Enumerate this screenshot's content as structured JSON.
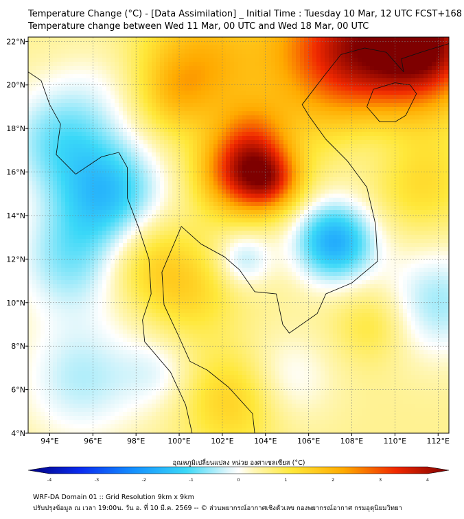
{
  "title": {
    "line1": "Temperature Change (°C) - [Data Assimilation] _ Initial Time : Tuesday 10 Mar, 12 UTC FCST+168",
    "line2": "Temperature change between Wed 11 Mar, 00 UTC and Wed 18 Mar, 00 UTC"
  },
  "axes": {
    "lon_range": [
      93,
      112.5
    ],
    "lat_range": [
      4,
      22.2
    ],
    "x_ticks": [
      {
        "value": 94,
        "label": "94°E"
      },
      {
        "value": 96,
        "label": "96°E"
      },
      {
        "value": 98,
        "label": "98°E"
      },
      {
        "value": 100,
        "label": "100°E"
      },
      {
        "value": 102,
        "label": "102°E"
      },
      {
        "value": 104,
        "label": "104°E"
      },
      {
        "value": 106,
        "label": "106°E"
      },
      {
        "value": 108,
        "label": "108°E"
      },
      {
        "value": 110,
        "label": "110°E"
      },
      {
        "value": 112,
        "label": "112°E"
      }
    ],
    "y_ticks": [
      {
        "value": 22,
        "label": "22°N"
      },
      {
        "value": 20,
        "label": "20°N"
      },
      {
        "value": 18,
        "label": "18°N"
      },
      {
        "value": 16,
        "label": "16°N"
      },
      {
        "value": 14,
        "label": "14°N"
      },
      {
        "value": 12,
        "label": "12°N"
      },
      {
        "value": 10,
        "label": "10°N"
      },
      {
        "value": 8,
        "label": "8°N"
      },
      {
        "value": 6,
        "label": "6°N"
      },
      {
        "value": 4,
        "label": "4°N"
      }
    ]
  },
  "field": {
    "base_value": 0.5,
    "blobs": [
      {
        "lon": 102.8,
        "lat": 15.9,
        "amp": 2.3,
        "r": 1.3
      },
      {
        "lon": 104.3,
        "lat": 15.6,
        "amp": 1.8,
        "r": 1.0
      },
      {
        "lon": 103.5,
        "lat": 17.6,
        "amp": 1.2,
        "r": 1.2
      },
      {
        "lon": 108.0,
        "lat": 21.6,
        "amp": 3.0,
        "r": 2.5
      },
      {
        "lon": 111.5,
        "lat": 21.8,
        "amp": 2.8,
        "r": 1.8
      },
      {
        "lon": 101.0,
        "lat": 21.0,
        "amp": 1.3,
        "r": 2.0
      },
      {
        "lon": 99.8,
        "lat": 19.5,
        "amp": 0.6,
        "r": 1.2
      },
      {
        "lon": 98.5,
        "lat": 12.0,
        "amp": 0.8,
        "r": 1.5
      },
      {
        "lon": 100.5,
        "lat": 10.5,
        "amp": 0.7,
        "r": 1.5
      },
      {
        "lon": 102.5,
        "lat": 5.5,
        "amp": 0.9,
        "r": 1.6
      },
      {
        "lon": 111.2,
        "lat": 15.5,
        "amp": 0.7,
        "r": 1.6
      },
      {
        "lon": 109.0,
        "lat": 9.0,
        "amp": 0.6,
        "r": 1.2
      },
      {
        "lon": 96.8,
        "lat": 15.0,
        "amp": -1.6,
        "r": 1.7
      },
      {
        "lon": 94.5,
        "lat": 17.5,
        "amp": -1.2,
        "r": 1.8
      },
      {
        "lon": 95.0,
        "lat": 12.0,
        "amp": -1.1,
        "r": 1.8
      },
      {
        "lon": 107.2,
        "lat": 12.8,
        "amp": -2.1,
        "r": 1.3
      },
      {
        "lon": 103.0,
        "lat": 12.0,
        "amp": -0.9,
        "r": 0.9
      },
      {
        "lon": 112.0,
        "lat": 10.0,
        "amp": -1.0,
        "r": 1.8
      },
      {
        "lon": 95.5,
        "lat": 6.5,
        "amp": -0.9,
        "r": 2.0
      },
      {
        "lon": 99.0,
        "lat": 6.8,
        "amp": -0.5,
        "r": 1.2
      },
      {
        "lon": 109.0,
        "lat": 17.5,
        "amp": -0.5,
        "r": 1.5
      },
      {
        "lon": 105.0,
        "lat": 6.5,
        "amp": -0.6,
        "r": 1.5
      },
      {
        "lon": 96.5,
        "lat": 20.0,
        "amp": -0.3,
        "r": 1.5
      }
    ]
  },
  "coastlines": [
    {
      "name": "mainland-west-coast",
      "points": [
        [
          93.0,
          20.6
        ],
        [
          93.6,
          20.2
        ],
        [
          94.0,
          19.1
        ],
        [
          94.5,
          18.2
        ],
        [
          94.3,
          16.8
        ],
        [
          95.2,
          15.9
        ],
        [
          96.4,
          16.7
        ],
        [
          97.2,
          16.9
        ],
        [
          97.6,
          16.2
        ],
        [
          97.6,
          14.8
        ],
        [
          98.1,
          13.5
        ],
        [
          98.6,
          12.0
        ],
        [
          98.7,
          10.4
        ],
        [
          98.3,
          9.2
        ],
        [
          98.4,
          8.2
        ],
        [
          99.6,
          6.8
        ],
        [
          100.3,
          5.3
        ],
        [
          100.6,
          4.0
        ]
      ]
    },
    {
      "name": "gulf-and-indochina-coast",
      "points": [
        [
          103.5,
          4.0
        ],
        [
          103.4,
          4.9
        ],
        [
          102.3,
          6.1
        ],
        [
          101.3,
          6.9
        ],
        [
          100.5,
          7.3
        ],
        [
          100.0,
          8.4
        ],
        [
          99.3,
          9.9
        ],
        [
          99.2,
          11.4
        ],
        [
          99.8,
          12.8
        ],
        [
          100.1,
          13.5
        ],
        [
          101.0,
          12.7
        ],
        [
          102.1,
          12.1
        ],
        [
          102.8,
          11.5
        ],
        [
          103.5,
          10.5
        ],
        [
          104.5,
          10.4
        ],
        [
          104.8,
          9.0
        ],
        [
          105.1,
          8.6
        ],
        [
          106.4,
          9.5
        ],
        [
          106.8,
          10.4
        ],
        [
          108.0,
          10.9
        ],
        [
          109.2,
          11.9
        ],
        [
          109.1,
          13.6
        ],
        [
          108.7,
          15.3
        ],
        [
          107.8,
          16.5
        ],
        [
          106.8,
          17.5
        ],
        [
          106.0,
          18.6
        ],
        [
          105.7,
          19.1
        ],
        [
          106.7,
          20.4
        ],
        [
          107.5,
          21.4
        ],
        [
          108.6,
          21.7
        ],
        [
          109.6,
          21.5
        ],
        [
          110.4,
          20.6
        ],
        [
          110.3,
          21.2
        ],
        [
          111.2,
          21.5
        ],
        [
          112.5,
          21.9
        ]
      ]
    },
    {
      "name": "hainan",
      "points": [
        [
          108.7,
          19.0
        ],
        [
          109.3,
          18.3
        ],
        [
          110.0,
          18.3
        ],
        [
          110.5,
          18.6
        ],
        [
          111.0,
          19.6
        ],
        [
          110.7,
          20.0
        ],
        [
          110.0,
          20.1
        ],
        [
          109.0,
          19.8
        ],
        [
          108.7,
          19.0
        ]
      ]
    }
  ],
  "colorbar": {
    "label": "อุณหภูมิเปลี่ยนแปลง หน่วย องศาเซลเซียส (°C)",
    "min": -4,
    "max": 4,
    "ticks": [
      {
        "value": -4,
        "label": "-4"
      },
      {
        "value": -3,
        "label": "-3"
      },
      {
        "value": -2,
        "label": "-2"
      },
      {
        "value": -1,
        "label": "-1"
      },
      {
        "value": 0,
        "label": "0"
      },
      {
        "value": 1,
        "label": "1"
      },
      {
        "value": 2,
        "label": "2"
      },
      {
        "value": 3,
        "label": "3"
      },
      {
        "value": 4,
        "label": "4"
      }
    ],
    "stops": [
      {
        "value": -4,
        "color": "#00007e"
      },
      {
        "value": -3,
        "color": "#0a2cf0"
      },
      {
        "value": -2,
        "color": "#1490ff"
      },
      {
        "value": -1,
        "color": "#3ad8f8"
      },
      {
        "value": -0.2,
        "color": "#dff6fb"
      },
      {
        "value": 0,
        "color": "#ffffff"
      },
      {
        "value": 0.3,
        "color": "#fff6b4"
      },
      {
        "value": 1,
        "color": "#ffe83a"
      },
      {
        "value": 2,
        "color": "#ffaa00"
      },
      {
        "value": 3,
        "color": "#f02800"
      },
      {
        "value": 4,
        "color": "#7e0000"
      }
    ]
  },
  "footer": {
    "line1": "WRF-DA Domain 01 :: Grid Resolution 9km x 9km",
    "line2": "ปรับปรุงข้อมูล ณ เวลา 19:00น. วัน อ. ที่ 10 มี.ค. 2569 -- © ส่วนพยากรณ์อากาศเชิงตัวเลข กองพยากรณ์อากาศ กรมอุตุนิยมวิทยา"
  }
}
